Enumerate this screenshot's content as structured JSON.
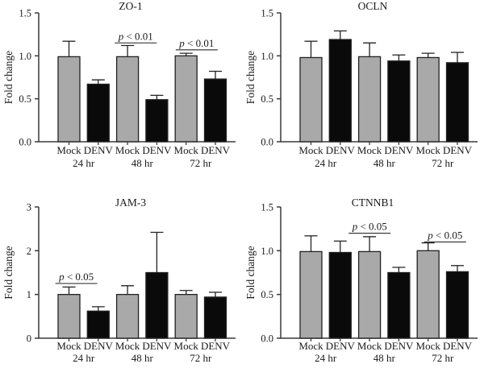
{
  "figure": {
    "background": "#ffffff",
    "mock_fill": "#a9a9a9",
    "denv_fill": "#0a0a0a",
    "bar_stroke": "#222222",
    "axis_color": "#3a3a3a",
    "text_color": "#1a1a1a"
  },
  "chart_data": [
    {
      "type": "bar",
      "title": "ZO-1",
      "ylabel": "Fold change",
      "ylim": [
        0,
        1.5
      ],
      "yticks": [
        {
          "v": 0,
          "label": "0.0"
        },
        {
          "v": 0.5,
          "label": "0.5"
        },
        {
          "v": 1,
          "label": "1.0"
        },
        {
          "v": 1.5,
          "label": "1.5"
        }
      ],
      "groups": [
        "24 hr",
        "48 hr",
        "72 hr"
      ],
      "bars": [
        {
          "label": "Mock",
          "group": "24 hr",
          "value": 0.99,
          "error": 0.18,
          "color": "mock"
        },
        {
          "label": "DENV",
          "group": "24 hr",
          "value": 0.67,
          "error": 0.05,
          "color": "denv"
        },
        {
          "label": "Mock",
          "group": "48 hr",
          "value": 0.99,
          "error": 0.13,
          "color": "mock"
        },
        {
          "label": "DENV",
          "group": "48 hr",
          "value": 0.49,
          "error": 0.05,
          "color": "denv"
        },
        {
          "label": "Mock",
          "group": "72 hr",
          "value": 1.0,
          "error": 0.03,
          "color": "mock"
        },
        {
          "label": "DENV",
          "group": "72 hr",
          "value": 0.73,
          "error": 0.09,
          "color": "denv"
        }
      ],
      "significance": [
        {
          "bar_from": 2,
          "bar_to": 3,
          "label": "p < 0.01",
          "line_y": 1.15,
          "x_shift": -8
        },
        {
          "bar_from": 4,
          "bar_to": 5,
          "label": "p < 0.01",
          "line_y": 1.07,
          "x_shift": -5
        }
      ]
    },
    {
      "type": "bar",
      "title": "OCLN",
      "ylabel": "Fold change",
      "ylim": [
        0,
        1.5
      ],
      "yticks": [
        {
          "v": 0,
          "label": "0.0"
        },
        {
          "v": 0.5,
          "label": "0.5"
        },
        {
          "v": 1,
          "label": "1.0"
        },
        {
          "v": 1.5,
          "label": "1.5"
        }
      ],
      "groups": [
        "24 hr",
        "48 hr",
        "72 hr"
      ],
      "bars": [
        {
          "label": "Mock",
          "group": "24 hr",
          "value": 0.98,
          "error": 0.19,
          "color": "mock"
        },
        {
          "label": "DENV",
          "group": "24 hr",
          "value": 1.19,
          "error": 0.1,
          "color": "denv"
        },
        {
          "label": "Mock",
          "group": "48 hr",
          "value": 0.99,
          "error": 0.16,
          "color": "mock"
        },
        {
          "label": "DENV",
          "group": "48 hr",
          "value": 0.94,
          "error": 0.07,
          "color": "denv"
        },
        {
          "label": "Mock",
          "group": "72 hr",
          "value": 0.98,
          "error": 0.05,
          "color": "mock"
        },
        {
          "label": "DENV",
          "group": "72 hr",
          "value": 0.92,
          "error": 0.12,
          "color": "denv"
        }
      ],
      "significance": []
    },
    {
      "type": "bar",
      "title": "JAM-3",
      "ylabel": "Fold change",
      "ylim": [
        0,
        3
      ],
      "yticks": [
        {
          "v": 0,
          "label": "0"
        },
        {
          "v": 1,
          "label": "1"
        },
        {
          "v": 2,
          "label": "2"
        },
        {
          "v": 3,
          "label": "3"
        }
      ],
      "groups": [
        "24 hr",
        "48 hr",
        "72 hr"
      ],
      "bars": [
        {
          "label": "Mock",
          "group": "24 hr",
          "value": 1.0,
          "error": 0.17,
          "color": "mock"
        },
        {
          "label": "DENV",
          "group": "24 hr",
          "value": 0.62,
          "error": 0.1,
          "color": "denv"
        },
        {
          "label": "Mock",
          "group": "48 hr",
          "value": 1.0,
          "error": 0.2,
          "color": "mock"
        },
        {
          "label": "DENV",
          "group": "48 hr",
          "value": 1.5,
          "error": 0.92,
          "color": "denv"
        },
        {
          "label": "Mock",
          "group": "72 hr",
          "value": 1.0,
          "error": 0.09,
          "color": "mock"
        },
        {
          "label": "DENV",
          "group": "72 hr",
          "value": 0.94,
          "error": 0.11,
          "color": "denv"
        }
      ],
      "significance": [
        {
          "bar_from": 0,
          "bar_to": 1,
          "label": "p < 0.05",
          "line_y": 1.25,
          "x_shift": -9
        }
      ]
    },
    {
      "type": "bar",
      "title": "CTNNB1",
      "ylabel": "Fold change",
      "ylim": [
        0,
        1.5
      ],
      "yticks": [
        {
          "v": 0,
          "label": "0.0"
        },
        {
          "v": 0.5,
          "label": "0.5"
        },
        {
          "v": 1,
          "label": "1.0"
        },
        {
          "v": 1.5,
          "label": "1.5"
        }
      ],
      "groups": [
        "24 hr",
        "48 hr",
        "72 hr"
      ],
      "bars": [
        {
          "label": "Mock",
          "group": "24 hr",
          "value": 0.99,
          "error": 0.18,
          "color": "mock"
        },
        {
          "label": "DENV",
          "group": "24 hr",
          "value": 0.98,
          "error": 0.13,
          "color": "denv"
        },
        {
          "label": "Mock",
          "group": "48 hr",
          "value": 0.99,
          "error": 0.17,
          "color": "mock"
        },
        {
          "label": "DENV",
          "group": "48 hr",
          "value": 0.75,
          "error": 0.06,
          "color": "denv"
        },
        {
          "label": "Mock",
          "group": "72 hr",
          "value": 1.0,
          "error": 0.09,
          "color": "mock"
        },
        {
          "label": "DENV",
          "group": "72 hr",
          "value": 0.76,
          "error": 0.07,
          "color": "denv"
        }
      ],
      "significance": [
        {
          "bar_from": 2,
          "bar_to": 3,
          "label": "p < 0.05",
          "line_y": 1.2,
          "x_shift": -18
        },
        {
          "bar_from": 4,
          "bar_to": 5,
          "label": "p < 0.05",
          "line_y": 1.1,
          "x_shift": 3
        }
      ]
    }
  ]
}
